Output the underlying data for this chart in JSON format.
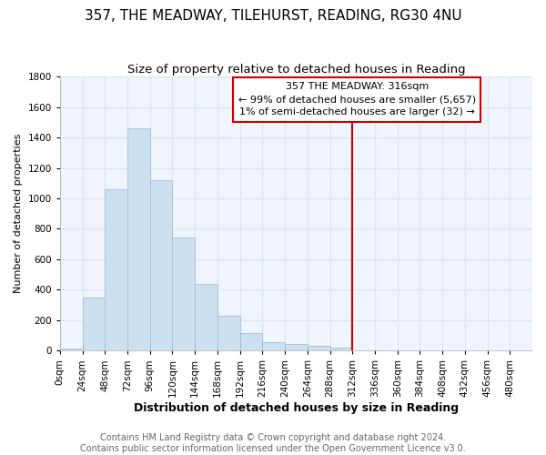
{
  "title": "357, THE MEADWAY, TILEHURST, READING, RG30 4NU",
  "subtitle": "Size of property relative to detached houses in Reading",
  "xlabel": "Distribution of detached houses by size in Reading",
  "ylabel": "Number of detached properties",
  "bin_labels": [
    "0sqm",
    "24sqm",
    "48sqm",
    "72sqm",
    "96sqm",
    "120sqm",
    "144sqm",
    "168sqm",
    "192sqm",
    "216sqm",
    "240sqm",
    "264sqm",
    "288sqm",
    "312sqm",
    "336sqm",
    "360sqm",
    "384sqm",
    "408sqm",
    "432sqm",
    "456sqm",
    "480sqm"
  ],
  "bar_heights": [
    12,
    350,
    1060,
    1460,
    1120,
    740,
    440,
    230,
    115,
    55,
    45,
    30,
    20,
    0,
    0,
    0,
    0,
    0,
    0,
    0,
    0
  ],
  "bar_color": "#cce0f0",
  "bar_edge_color": "#a0c0d8",
  "vline_x_index": 13,
  "vline_color": "#cc0000",
  "annotation_line1": "357 THE MEADWAY: 316sqm",
  "annotation_line2": "← 99% of detached houses are smaller (5,657)",
  "annotation_line3": "1% of semi-detached houses are larger (32) →",
  "annotation_box_color": "#ffffff",
  "annotation_box_edge_color": "#cc0000",
  "ylim": [
    0,
    1800
  ],
  "yticks": [
    0,
    200,
    400,
    600,
    800,
    1000,
    1200,
    1400,
    1600,
    1800
  ],
  "footer_text": "Contains HM Land Registry data © Crown copyright and database right 2024.\nContains public sector information licensed under the Open Government Licence v3.0.",
  "fig_bg_color": "#ffffff",
  "plot_bg_color": "#f0f4fc",
  "grid_color": "#d8e4f0",
  "title_fontsize": 11,
  "subtitle_fontsize": 9.5,
  "xlabel_fontsize": 9,
  "ylabel_fontsize": 8,
  "tick_fontsize": 7.5,
  "annotation_fontsize": 8,
  "footer_fontsize": 7
}
